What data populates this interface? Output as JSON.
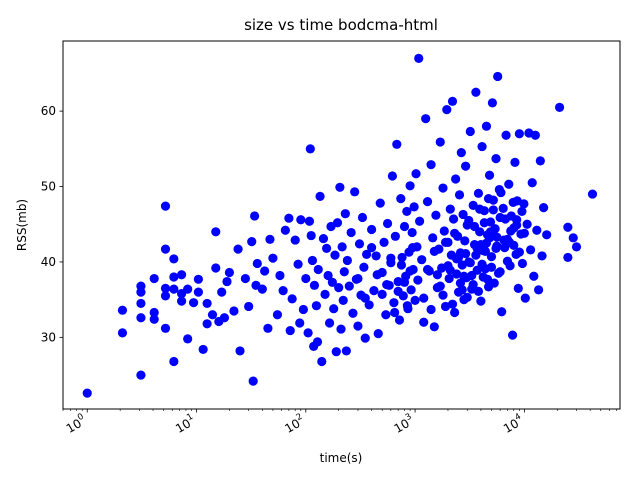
{
  "chart_data": {
    "type": "scatter",
    "title": "size vs time bodcma-html",
    "xlabel": "time(s)",
    "ylabel": "RSS(mb)",
    "xscale": "log",
    "xlim": [
      0.6,
      75000
    ],
    "ylim": [
      20.5,
      69.3
    ],
    "grid": false,
    "marker_color": "#0000ff",
    "x_ticks": [
      {
        "value": 1,
        "base": "10",
        "exp": "0"
      },
      {
        "value": 10,
        "base": "10",
        "exp": "1"
      },
      {
        "value": 100,
        "base": "10",
        "exp": "2"
      },
      {
        "value": 1000,
        "base": "10",
        "exp": "3"
      },
      {
        "value": 10000,
        "base": "10",
        "exp": "4"
      }
    ],
    "y_ticks": [
      30,
      40,
      50,
      60
    ],
    "points": [
      [
        1,
        22.6
      ],
      [
        2.1,
        30.6
      ],
      [
        2.1,
        33.6
      ],
      [
        3.1,
        25.0
      ],
      [
        3.1,
        32.6
      ],
      [
        3.1,
        34.5
      ],
      [
        3.1,
        36.0
      ],
      [
        3.1,
        36.8
      ],
      [
        4.1,
        32.4
      ],
      [
        4.1,
        33.3
      ],
      [
        4.1,
        37.8
      ],
      [
        5.2,
        31.2
      ],
      [
        5.2,
        35.5
      ],
      [
        5.2,
        36.5
      ],
      [
        5.2,
        41.7
      ],
      [
        5.2,
        47.4
      ],
      [
        6.2,
        26.8
      ],
      [
        6.2,
        36.4
      ],
      [
        6.2,
        38.0
      ],
      [
        6.2,
        40.4
      ],
      [
        7.3,
        34.8
      ],
      [
        7.3,
        35.8
      ],
      [
        7.3,
        38.3
      ],
      [
        8.3,
        29.8
      ],
      [
        8.3,
        36.4
      ],
      [
        9.4,
        34.6
      ],
      [
        10.4,
        36.0
      ],
      [
        10.4,
        37.7
      ],
      [
        11.5,
        28.4
      ],
      [
        12.5,
        31.8
      ],
      [
        12.5,
        34.5
      ],
      [
        14,
        33.0
      ],
      [
        15,
        44.0
      ],
      [
        15,
        39.2
      ],
      [
        16,
        32.1
      ],
      [
        17,
        36.0
      ],
      [
        18,
        32.6
      ],
      [
        19,
        37.4
      ],
      [
        20,
        38.6
      ],
      [
        22,
        33.5
      ],
      [
        24,
        41.7
      ],
      [
        25,
        28.2
      ],
      [
        28,
        37.8
      ],
      [
        30,
        34.1
      ],
      [
        32,
        42.7
      ],
      [
        33,
        24.2
      ],
      [
        34,
        46.1
      ],
      [
        35,
        36.9
      ],
      [
        36,
        39.8
      ],
      [
        40,
        36.4
      ],
      [
        42,
        38.8
      ],
      [
        45,
        31.2
      ],
      [
        47,
        43.0
      ],
      [
        50,
        40.5
      ],
      [
        55,
        33.0
      ],
      [
        58,
        38.2
      ],
      [
        62,
        36.2
      ],
      [
        65,
        44.2
      ],
      [
        70,
        45.8
      ],
      [
        72,
        30.9
      ],
      [
        75,
        35.1
      ],
      [
        80,
        42.9
      ],
      [
        85,
        39.7
      ],
      [
        88,
        31.9
      ],
      [
        90,
        45.6
      ],
      [
        95,
        33.7
      ],
      [
        100,
        37.8
      ],
      [
        105,
        30.6
      ],
      [
        108,
        45.4
      ],
      [
        110,
        55.0
      ],
      [
        112,
        43.5
      ],
      [
        115,
        40.2
      ],
      [
        118,
        28.8
      ],
      [
        120,
        36.9
      ],
      [
        125,
        34.2
      ],
      [
        128,
        29.4
      ],
      [
        130,
        39.0
      ],
      [
        135,
        48.7
      ],
      [
        140,
        26.8
      ],
      [
        145,
        43.1
      ],
      [
        150,
        35.7
      ],
      [
        155,
        41.8
      ],
      [
        160,
        38.2
      ],
      [
        165,
        31.9
      ],
      [
        170,
        44.7
      ],
      [
        175,
        37.3
      ],
      [
        180,
        33.8
      ],
      [
        185,
        40.9
      ],
      [
        190,
        28.1
      ],
      [
        195,
        45.2
      ],
      [
        200,
        36.6
      ],
      [
        205,
        49.9
      ],
      [
        210,
        31.1
      ],
      [
        215,
        42.0
      ],
      [
        220,
        34.9
      ],
      [
        225,
        38.7
      ],
      [
        230,
        46.4
      ],
      [
        235,
        28.2
      ],
      [
        240,
        40.2
      ],
      [
        250,
        36.8
      ],
      [
        260,
        43.9
      ],
      [
        270,
        33.2
      ],
      [
        280,
        49.3
      ],
      [
        290,
        37.7
      ],
      [
        300,
        31.5
      ],
      [
        310,
        42.4
      ],
      [
        320,
        35.6
      ],
      [
        330,
        45.9
      ],
      [
        340,
        39.3
      ],
      [
        350,
        29.9
      ],
      [
        360,
        41.0
      ],
      [
        380,
        34.3
      ],
      [
        400,
        44.3
      ],
      [
        420,
        36.2
      ],
      [
        440,
        40.8
      ],
      [
        460,
        30.5
      ],
      [
        480,
        47.8
      ],
      [
        500,
        38.6
      ],
      [
        520,
        42.6
      ],
      [
        540,
        33.0
      ],
      [
        560,
        45.1
      ],
      [
        580,
        36.9
      ],
      [
        600,
        39.9
      ],
      [
        620,
        51.4
      ],
      [
        640,
        34.6
      ],
      [
        660,
        43.4
      ],
      [
        680,
        55.6
      ],
      [
        700,
        37.4
      ],
      [
        720,
        32.3
      ],
      [
        740,
        48.4
      ],
      [
        760,
        40.6
      ],
      [
        780,
        35.5
      ],
      [
        800,
        44.7
      ],
      [
        820,
        38.1
      ],
      [
        840,
        46.7
      ],
      [
        860,
        33.8
      ],
      [
        880,
        41.3
      ],
      [
        900,
        50.1
      ],
      [
        920,
        36.3
      ],
      [
        940,
        43.9
      ],
      [
        960,
        39.0
      ],
      [
        980,
        47.3
      ],
      [
        1000,
        34.9
      ],
      [
        1020,
        51.7
      ],
      [
        1040,
        42.0
      ],
      [
        1060,
        37.6
      ],
      [
        1080,
        67.0
      ],
      [
        1100,
        45.4
      ],
      [
        1150,
        40.3
      ],
      [
        1200,
        35.2
      ],
      [
        1250,
        59.0
      ],
      [
        1300,
        48.0
      ],
      [
        1350,
        38.8
      ],
      [
        1400,
        52.9
      ],
      [
        1450,
        43.2
      ],
      [
        1500,
        31.4
      ],
      [
        1550,
        46.2
      ],
      [
        1600,
        36.6
      ],
      [
        1650,
        41.7
      ],
      [
        1700,
        55.9
      ],
      [
        1750,
        39.2
      ],
      [
        1800,
        49.8
      ],
      [
        1850,
        44.1
      ],
      [
        1900,
        34.1
      ],
      [
        1950,
        60.2
      ],
      [
        2000,
        42.6
      ],
      [
        2050,
        37.8
      ],
      [
        2100,
        47.0
      ],
      [
        2150,
        40.9
      ],
      [
        2200,
        61.3
      ],
      [
        2250,
        45.7
      ],
      [
        2300,
        33.3
      ],
      [
        2350,
        51.0
      ],
      [
        2400,
        38.4
      ],
      [
        2450,
        43.4
      ],
      [
        2500,
        36.0
      ],
      [
        2550,
        48.9
      ],
      [
        2600,
        41.2
      ],
      [
        2650,
        54.5
      ],
      [
        2700,
        39.6
      ],
      [
        2750,
        46.3
      ],
      [
        2800,
        35.0
      ],
      [
        2850,
        42.8
      ],
      [
        2900,
        52.7
      ],
      [
        2950,
        37.9
      ],
      [
        3000,
        44.9
      ],
      [
        3100,
        40.0
      ],
      [
        3200,
        57.3
      ],
      [
        3300,
        36.4
      ],
      [
        3400,
        47.5
      ],
      [
        3500,
        42.3
      ],
      [
        3600,
        62.5
      ],
      [
        3700,
        38.9
      ],
      [
        3800,
        49.1
      ],
      [
        3900,
        44.0
      ],
      [
        4000,
        34.8
      ],
      [
        4100,
        55.3
      ],
      [
        4200,
        41.5
      ],
      [
        4300,
        46.8
      ],
      [
        4400,
        39.1
      ],
      [
        4500,
        58.0
      ],
      [
        4600,
        43.6
      ],
      [
        4700,
        36.7
      ],
      [
        4800,
        51.5
      ],
      [
        4900,
        45.3
      ],
      [
        5000,
        40.7
      ],
      [
        5100,
        61.1
      ],
      [
        5200,
        48.2
      ],
      [
        5300,
        37.2
      ],
      [
        5400,
        44.4
      ],
      [
        5500,
        53.7
      ],
      [
        5600,
        42.1
      ],
      [
        5700,
        64.6
      ],
      [
        5800,
        38.5
      ],
      [
        5900,
        49.6
      ],
      [
        6000,
        45.9
      ],
      [
        6200,
        33.4
      ],
      [
        6400,
        47.1
      ],
      [
        6600,
        41.9
      ],
      [
        6800,
        56.8
      ],
      [
        7000,
        43.0
      ],
      [
        7200,
        50.3
      ],
      [
        7400,
        39.5
      ],
      [
        7600,
        46.1
      ],
      [
        7800,
        30.3
      ],
      [
        8000,
        44.5
      ],
      [
        8200,
        53.2
      ],
      [
        8400,
        41.0
      ],
      [
        8600,
        48.1
      ],
      [
        8800,
        36.5
      ],
      [
        9000,
        57.0
      ],
      [
        9300,
        43.7
      ],
      [
        9600,
        39.8
      ],
      [
        9900,
        47.7
      ],
      [
        10200,
        35.2
      ],
      [
        10600,
        45.0
      ],
      [
        11000,
        57.1
      ],
      [
        11400,
        41.6
      ],
      [
        11800,
        50.5
      ],
      [
        12200,
        38.1
      ],
      [
        12600,
        56.8
      ],
      [
        13000,
        44.2
      ],
      [
        13500,
        36.3
      ],
      [
        14000,
        53.4
      ],
      [
        14500,
        40.8
      ],
      [
        15000,
        47.2
      ],
      [
        16000,
        43.6
      ],
      [
        21000,
        60.5
      ],
      [
        25000,
        40.6
      ],
      [
        25000,
        44.6
      ],
      [
        28000,
        43.2
      ],
      [
        30000,
        42.0
      ],
      [
        42000,
        49.0
      ],
      [
        1200,
        32.0
      ],
      [
        1400,
        33.7
      ],
      [
        1600,
        38.3
      ],
      [
        1800,
        35.6
      ],
      [
        2000,
        39.5
      ],
      [
        2200,
        34.4
      ],
      [
        2400,
        40.4
      ],
      [
        2600,
        37.2
      ],
      [
        2800,
        38.1
      ],
      [
        3000,
        35.3
      ],
      [
        3200,
        39.9
      ],
      [
        3400,
        37.0
      ],
      [
        3600,
        40.9
      ],
      [
        3800,
        36.1
      ],
      [
        4000,
        42.3
      ],
      [
        4200,
        38.0
      ],
      [
        4400,
        41.4
      ],
      [
        4600,
        37.7
      ],
      [
        4800,
        43.2
      ],
      [
        5000,
        39.3
      ],
      [
        5500,
        41.8
      ],
      [
        6000,
        38.7
      ],
      [
        6500,
        42.9
      ],
      [
        7000,
        40.1
      ],
      [
        7500,
        44.1
      ],
      [
        8000,
        42.2
      ],
      [
        8500,
        45.6
      ],
      [
        9000,
        41.3
      ],
      [
        9500,
        46.7
      ],
      [
        10000,
        43.8
      ],
      [
        700,
        36.1
      ],
      [
        750,
        39.6
      ],
      [
        800,
        37.3
      ],
      [
        850,
        34.2
      ],
      [
        900,
        38.8
      ],
      [
        950,
        41.9
      ],
      [
        650,
        33.3
      ],
      [
        600,
        40.5
      ],
      [
        550,
        37.0
      ],
      [
        500,
        35.7
      ],
      [
        450,
        38.3
      ],
      [
        400,
        41.9
      ],
      [
        350,
        35.2
      ],
      [
        300,
        37.8
      ],
      [
        1300,
        39.0
      ],
      [
        1500,
        41.4
      ],
      [
        1700,
        36.8
      ],
      [
        1900,
        42.6
      ],
      [
        2100,
        38.9
      ],
      [
        2300,
        43.8
      ],
      [
        2500,
        40.6
      ],
      [
        2700,
        36.3
      ],
      [
        2900,
        41.1
      ],
      [
        3100,
        45.5
      ],
      [
        3300,
        38.2
      ],
      [
        3500,
        44.7
      ],
      [
        3700,
        41.8
      ],
      [
        3900,
        47.0
      ],
      [
        4100,
        39.7
      ],
      [
        4300,
        45.2
      ],
      [
        4500,
        42.5
      ],
      [
        4700,
        48.4
      ],
      [
        4900,
        44.0
      ],
      [
        5200,
        46.9
      ],
      [
        5600,
        43.3
      ],
      [
        6100,
        49.2
      ],
      [
        6700,
        45.7
      ],
      [
        7300,
        42.6
      ],
      [
        7900,
        47.9
      ],
      [
        8500,
        44.9
      ]
    ]
  }
}
